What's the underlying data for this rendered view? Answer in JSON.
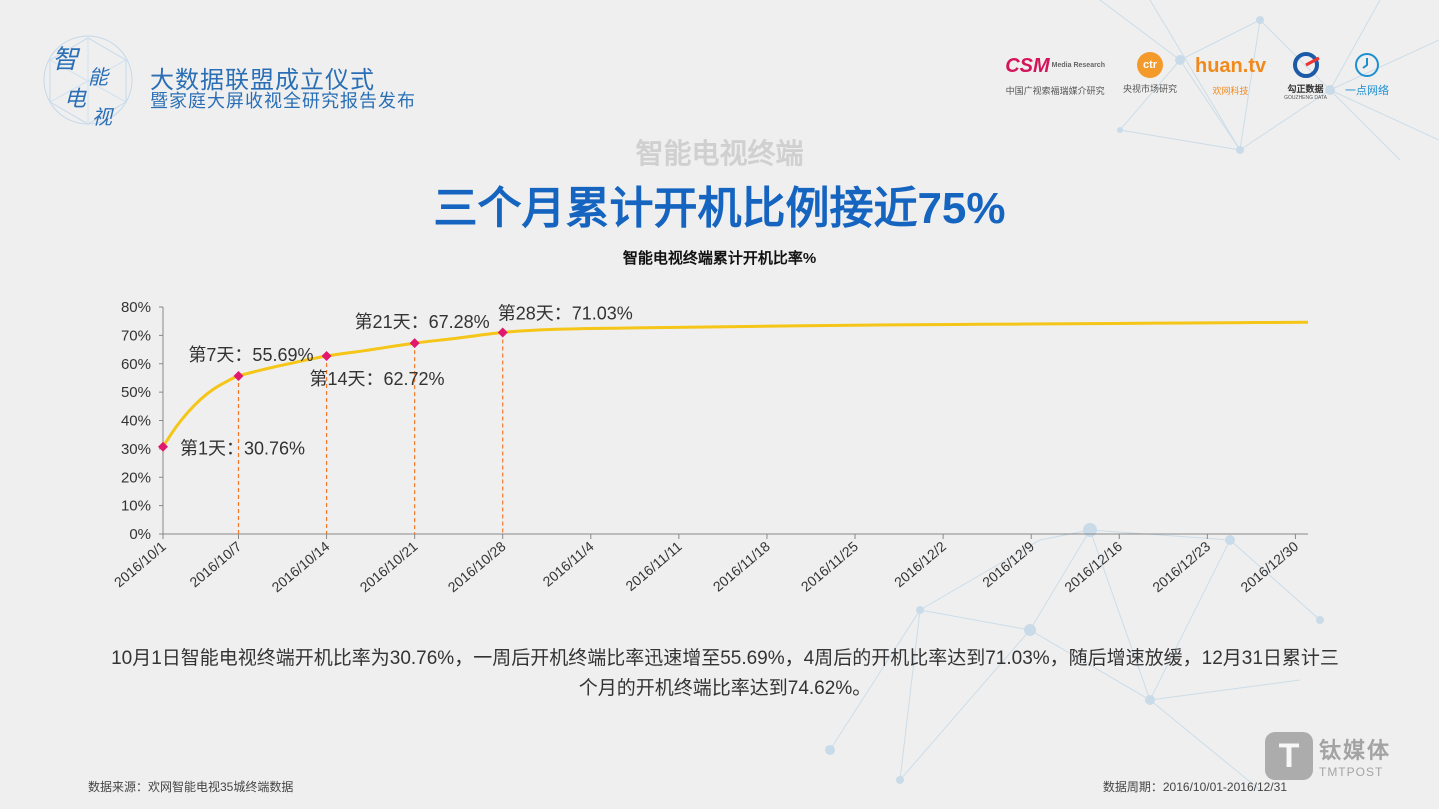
{
  "header": {
    "event_line1": "大数据联盟成立仪式",
    "event_line2": "暨家庭大屏收视全研究报告发布",
    "logo_text": "智能电视"
  },
  "partners": [
    {
      "logo": "CSM",
      "logo_sub": "Media Research",
      "caption": "中国广视索福瑞媒介研究",
      "icon": "csm-logo"
    },
    {
      "logo": "ctr",
      "caption": "央视市场研究",
      "icon": "ctr-logo"
    },
    {
      "logo": "huan.tv",
      "caption": "欢网科技",
      "icon": "huan-logo"
    },
    {
      "logo": "勾正数据",
      "logo_sub": "GOUZHENG DATA",
      "caption": "",
      "icon": "gouzheng-logo"
    },
    {
      "logo": "",
      "caption": "一点网络",
      "icon": "clock-logo"
    }
  ],
  "page": {
    "subtitle": "智能电视终端",
    "title": "三个月累计开机比例接近75%",
    "description": "10月1日智能电视终端开机比率为30.76%，一周后开机终端比率迅速增至55.69%，4周后的开机比率达到71.03%，随后增速放缓，12月31日累计三个月的开机终端比率达到74.62%。",
    "source": "数据来源：欢网智能电视35城终端数据",
    "period": "数据周期：2016/10/01-2016/12/31",
    "watermark_cn": "钛媒体",
    "watermark_en": "TMTPOST",
    "watermark_glyph": "T"
  },
  "chart_data": {
    "type": "line",
    "title": "智能电视终端累计开机比率%",
    "xlabel": "",
    "ylabel": "",
    "ylim": [
      0,
      80
    ],
    "yticks": [
      "0%",
      "10%",
      "20%",
      "30%",
      "40%",
      "50%",
      "60%",
      "70%",
      "80%"
    ],
    "x_ticks": [
      "2016/10/1",
      "2016/10/7",
      "2016/10/14",
      "2016/10/21",
      "2016/10/28",
      "2016/11/4",
      "2016/11/11",
      "2016/11/18",
      "2016/11/25",
      "2016/12/2",
      "2016/12/9",
      "2016/12/16",
      "2016/12/23",
      "2016/12/30"
    ],
    "series": [
      {
        "name": "",
        "color": "#f5c518",
        "points": [
          [
            "2016-10-01",
            30.76
          ],
          [
            "2016-10-02",
            37.5
          ],
          [
            "2016-10-03",
            43.0
          ],
          [
            "2016-10-04",
            47.5
          ],
          [
            "2016-10-05",
            51.0
          ],
          [
            "2016-10-06",
            53.6
          ],
          [
            "2016-10-07",
            55.69
          ],
          [
            "2016-10-09",
            58.0
          ],
          [
            "2016-10-11",
            60.0
          ],
          [
            "2016-10-14",
            62.72
          ],
          [
            "2016-10-17",
            64.6
          ],
          [
            "2016-10-21",
            67.28
          ],
          [
            "2016-10-24",
            68.8
          ],
          [
            "2016-10-28",
            71.03
          ],
          [
            "2016-11-01",
            72.1
          ],
          [
            "2016-11-07",
            72.6
          ],
          [
            "2016-11-14",
            73.0
          ],
          [
            "2016-11-21",
            73.4
          ],
          [
            "2016-11-28",
            73.7
          ],
          [
            "2016-12-05",
            73.9
          ],
          [
            "2016-12-12",
            74.1
          ],
          [
            "2016-12-19",
            74.3
          ],
          [
            "2016-12-26",
            74.5
          ],
          [
            "2016-12-31",
            74.62
          ]
        ]
      }
    ],
    "markers": [
      {
        "date": "2016-10-01",
        "value": 30.76,
        "label": "第1天：30.76%",
        "label_pos": "below-right"
      },
      {
        "date": "2016-10-07",
        "value": 55.69,
        "label": "第7天：55.69%",
        "label_pos": "above-left"
      },
      {
        "date": "2016-10-14",
        "value": 62.72,
        "label": "第14天：62.72%",
        "label_pos": "below-left"
      },
      {
        "date": "2016-10-21",
        "value": 67.28,
        "label": "第21天：67.28%",
        "label_pos": "above-left"
      },
      {
        "date": "2016-10-28",
        "value": 71.03,
        "label": "第28天：71.03%",
        "label_pos": "above-right"
      }
    ],
    "marker_color": "#e0196e",
    "dropline_color": "#f07a2a",
    "grid": false
  }
}
